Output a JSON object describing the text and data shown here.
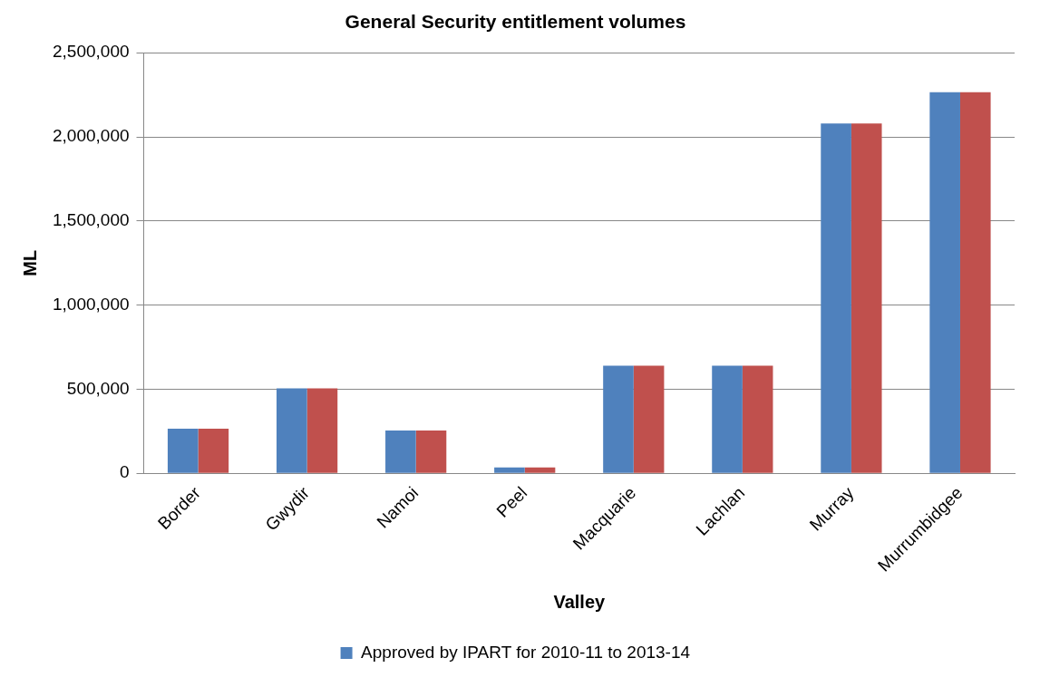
{
  "chart_data": {
    "type": "bar",
    "title": "General Security entitlement volumes",
    "xlabel": "Valley",
    "ylabel": "ML",
    "categories": [
      "Border",
      "Gwydir",
      "Namoi",
      "Peel",
      "Macquarie",
      "Lachlan",
      "Murray",
      "Murrumbidgee"
    ],
    "series": [
      {
        "name": "Approved by IPART for 2010-11 to 2013-14",
        "color": "#4f81bd",
        "values": [
          265000,
          505000,
          255000,
          35000,
          640000,
          640000,
          2080000,
          2265000
        ]
      },
      {
        "color": "#c0504d",
        "values": [
          265000,
          505000,
          255000,
          35000,
          640000,
          640000,
          2080000,
          2265000
        ]
      }
    ],
    "ylim": [
      0,
      2500000
    ],
    "yticks": [
      {
        "value": 0,
        "label": "0"
      },
      {
        "value": 500000,
        "label": "500,000"
      },
      {
        "value": 1000000,
        "label": "1,000,000"
      },
      {
        "value": 1500000,
        "label": "1,500,000"
      },
      {
        "value": 2000000,
        "label": "2,000,000"
      },
      {
        "value": 2500000,
        "label": "2,500,000"
      }
    ],
    "grid": "y",
    "legend": "bottom"
  }
}
